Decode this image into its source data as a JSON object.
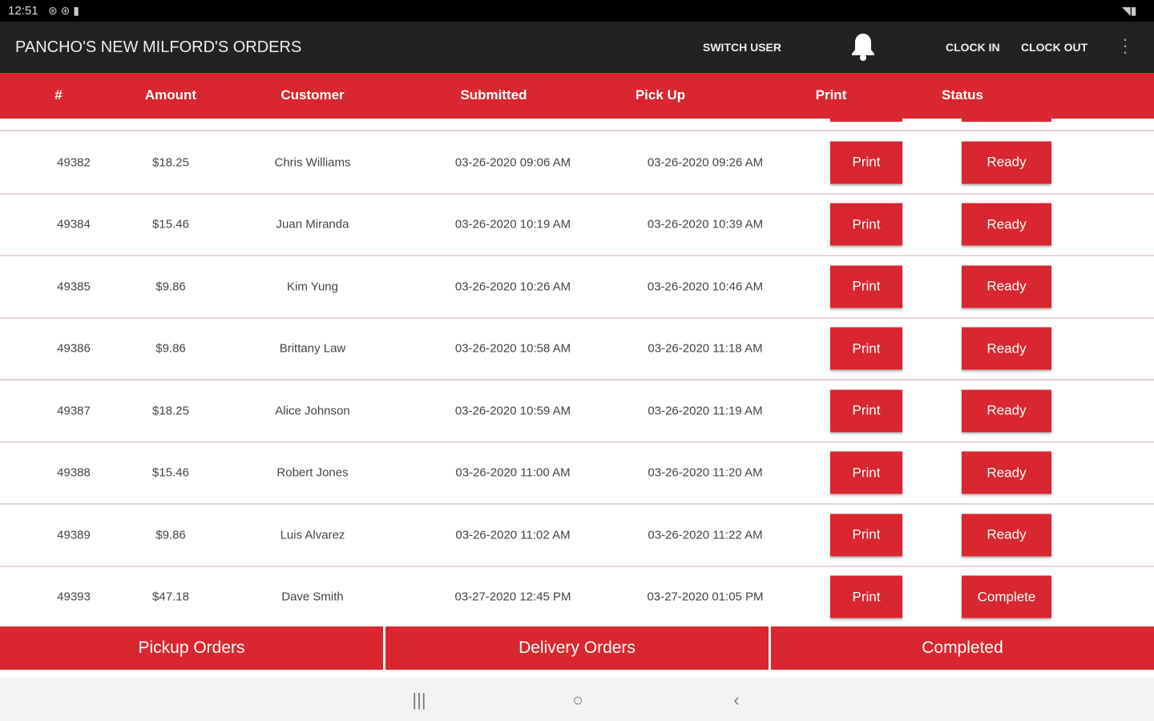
{
  "status_bar": {
    "time": "12:51"
  },
  "app_bar": {
    "title": "PANCHO'S NEW MILFORD'S ORDERS",
    "switch_user": "SWITCH USER",
    "clock_in": "CLOCK IN",
    "clock_out": "CLOCK OUT"
  },
  "table": {
    "columns": [
      "#",
      "Amount",
      "Customer",
      "Submitted",
      "Pick Up",
      "Print",
      "Status"
    ],
    "rows": [
      {
        "id": "49382",
        "amount": "$18.25",
        "customer": "Chris Williams",
        "submitted": "03-26-2020 09:06 AM",
        "pickup": "03-26-2020 09:26 AM",
        "print": "Print",
        "status": "Ready"
      },
      {
        "id": "49384",
        "amount": "$15.46",
        "customer": "Juan Miranda",
        "submitted": "03-26-2020 10:19 AM",
        "pickup": "03-26-2020 10:39 AM",
        "print": "Print",
        "status": "Ready"
      },
      {
        "id": "49385",
        "amount": "$9.86",
        "customer": "Kim Yung",
        "submitted": "03-26-2020 10:26 AM",
        "pickup": "03-26-2020 10:46 AM",
        "print": "Print",
        "status": "Ready"
      },
      {
        "id": "49386",
        "amount": "$9.86",
        "customer": "Brittany Law",
        "submitted": "03-26-2020 10:58 AM",
        "pickup": "03-26-2020 11:18 AM",
        "print": "Print",
        "status": "Ready"
      },
      {
        "id": "49387",
        "amount": "$18.25",
        "customer": "Alice Johnson",
        "submitted": "03-26-2020 10:59 AM",
        "pickup": "03-26-2020 11:19 AM",
        "print": "Print",
        "status": "Ready"
      },
      {
        "id": "49388",
        "amount": "$15.46",
        "customer": "Robert Jones",
        "submitted": "03-26-2020 11:00 AM",
        "pickup": "03-26-2020 11:20 AM",
        "print": "Print",
        "status": "Ready"
      },
      {
        "id": "49389",
        "amount": "$9.86",
        "customer": "Luis Alvarez",
        "submitted": "03-26-2020 11:02 AM",
        "pickup": "03-26-2020 11:22 AM",
        "print": "Print",
        "status": "Ready"
      },
      {
        "id": "49393",
        "amount": "$47.18",
        "customer": "Dave Smith",
        "submitted": "03-27-2020 12:45 PM",
        "pickup": "03-27-2020 01:05 PM",
        "print": "Print",
        "status": "Complete"
      }
    ]
  },
  "tabs": [
    "Pickup Orders",
    "Delivery Orders",
    "Completed"
  ],
  "colors": {
    "accent": "#d9272f",
    "app_bar": "#222222"
  }
}
